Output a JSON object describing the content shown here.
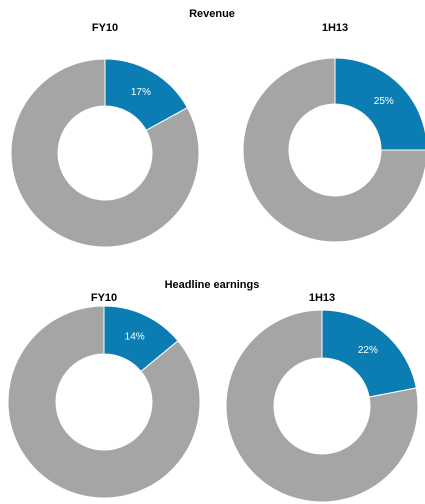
{
  "chart_data": [
    {
      "type": "donut",
      "group_title": "Revenue",
      "title": "FY10",
      "values": [
        17,
        83
      ],
      "value_labels": [
        "17%",
        null
      ],
      "colors": [
        "#0b7db3",
        "#a5a5a5"
      ]
    },
    {
      "type": "donut",
      "title": "1H13",
      "values": [
        25,
        75
      ],
      "value_labels": [
        "25%",
        null
      ],
      "colors": [
        "#0b7db3",
        "#a5a5a5"
      ]
    },
    {
      "type": "donut",
      "group_title": "Headline earnings",
      "title": "FY10",
      "values": [
        14,
        86
      ],
      "value_labels": [
        "14%",
        null
      ],
      "colors": [
        "#0b7db3",
        "#a5a5a5"
      ]
    },
    {
      "type": "donut",
      "title": "1H13",
      "values": [
        22,
        78
      ],
      "value_labels": [
        "22%",
        null
      ],
      "colors": [
        "#0b7db3",
        "#a5a5a5"
      ]
    }
  ]
}
